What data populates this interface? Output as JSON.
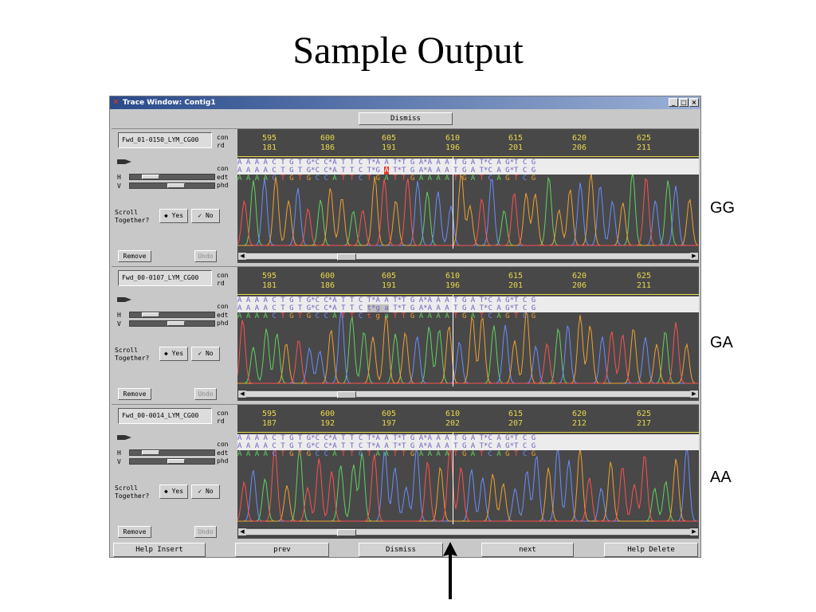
{
  "slide": {
    "title": "Sample Output"
  },
  "window": {
    "title": "Trace Window: Contig1",
    "controls": [
      "_",
      "□",
      "×"
    ],
    "top_button": "Dismiss"
  },
  "ruler_positions": [
    "595",
    "600",
    "605",
    "610",
    "615",
    "620",
    "625"
  ],
  "panels": [
    {
      "read_name": "Fwd_01-0150_LYM_CG00",
      "rd_positions": [
        "181",
        "186",
        "191",
        "196",
        "201",
        "206",
        "211"
      ],
      "con_seq": "A A A A C T G T G*C C*A T T C T*A A T*T G A*A A A T G A T*C A G*T C G",
      "edt_seq": "A A A A C T G T G*C C*A T T C T*G A T*T G A*A A A T G A T*C A G*T C G",
      "phd_seq": "A A A A C T G T G C C A T T C T G A T T G A A A A T G A T C A G T C G",
      "genotype": "GG",
      "scroll_label": "Scroll Together?",
      "yes": "Yes",
      "no": "No",
      "remove": "Remove",
      "undo": "Undo",
      "con_tag": "con",
      "rd_tag": "rd",
      "edt_tag": "edt",
      "phd_tag": "phd",
      "h_label": "H",
      "v_label": "V",
      "h_slider_value": 0.18,
      "v_slider_value": 0.55
    },
    {
      "read_name": "Fwd_00-0107_LYM_CG00",
      "rd_positions": [
        "181",
        "186",
        "191",
        "196",
        "201",
        "206",
        "211"
      ],
      "con_seq": "A A A A C T G T G*C C*A T T C T*A A T*T G A*A A A T G A T*C A G*T C G",
      "edt_seq": "A A A A C T G T G*C C*A T T C t*g a T*T G A*A A A T G A T*C A G*T C G",
      "phd_seq": "A A A A C T G T G C C A T T C t g a T T G A A A A T G A T C A G T C G",
      "genotype": "GA",
      "scroll_label": "Scroll Together?",
      "yes": "Yes",
      "no": "No",
      "remove": "Remove",
      "undo": "Undo",
      "con_tag": "con",
      "rd_tag": "rd",
      "edt_tag": "edt",
      "phd_tag": "phd",
      "h_label": "H",
      "v_label": "V",
      "h_slider_value": 0.18,
      "v_slider_value": 0.55
    },
    {
      "read_name": "Fwd_00-0014_LYM_CG00",
      "rd_positions": [
        "187",
        "192",
        "197",
        "202",
        "207",
        "212",
        "217"
      ],
      "con_seq": "A A A A C T G T G*C C*A T T C T*A A T*T G A*A A A T G A T*C A G*T C G",
      "edt_seq": "A A A A C T G T G*C C*A T T C T*A A T*T G A*A A A T G A T*C A G*T C G",
      "phd_seq": "A A A A C T G T G C C A T T C T A A T T G A A A A T G A T C A G T C G",
      "genotype": "AA",
      "scroll_label": "Scroll Together?",
      "yes": "Yes",
      "no": "No",
      "remove": "Remove",
      "undo": "Undo",
      "con_tag": "con",
      "rd_tag": "rd",
      "edt_tag": "edt",
      "phd_tag": "phd",
      "h_label": "H",
      "v_label": "V",
      "h_slider_value": 0.18,
      "v_slider_value": 0.55
    }
  ],
  "bottom_buttons": [
    "Help Insert",
    "prev",
    "Dismiss",
    "next",
    "Help Delete"
  ],
  "colors": {
    "A": "#5fd35f",
    "C": "#6a8cff",
    "G": "#f0a030",
    "T": "#ff5050",
    "ruler": "#e8d84a",
    "trace_bg": "#484848",
    "highlight": "#e03a2a"
  },
  "icons": [
    "app-icon",
    "pointer-icon",
    "up-arrow-icon"
  ]
}
